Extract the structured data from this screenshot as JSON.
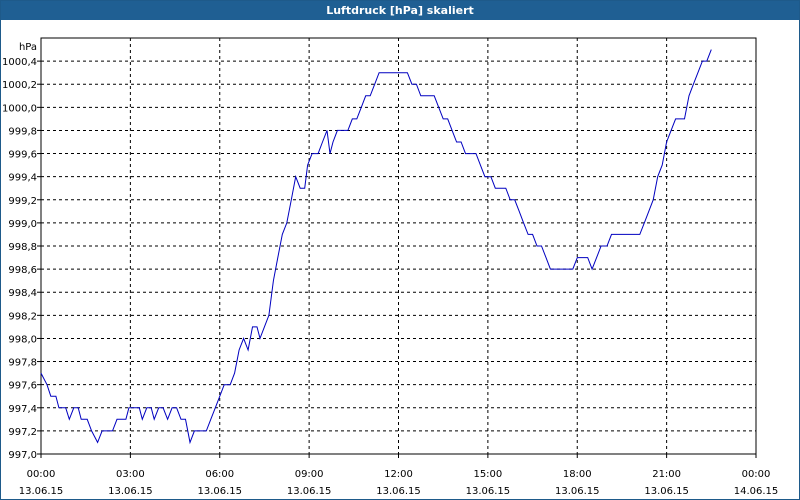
{
  "title": "Luftdruck [hPa] skaliert",
  "chart_data": {
    "type": "line",
    "title": "Luftdruck [hPa] skaliert",
    "ylabel": "hPa",
    "xlabel": "",
    "ylim": [
      997.0,
      1000.6
    ],
    "y_ticks": [
      "997,0",
      "997,2",
      "997,4",
      "997,6",
      "997,8",
      "998,0",
      "998,2",
      "998,4",
      "998,6",
      "998,8",
      "999,0",
      "999,2",
      "999,4",
      "999,6",
      "999,8",
      "1000,0",
      "1000,2",
      "1000,4"
    ],
    "x_ticks": [
      {
        "time": "00:00",
        "date": "13.06.15"
      },
      {
        "time": "03:00",
        "date": "13.06.15"
      },
      {
        "time": "06:00",
        "date": "13.06.15"
      },
      {
        "time": "09:00",
        "date": "13.06.15"
      },
      {
        "time": "12:00",
        "date": "13.06.15"
      },
      {
        "time": "15:00",
        "date": "13.06.15"
      },
      {
        "time": "18:00",
        "date": "13.06.15"
      },
      {
        "time": "21:00",
        "date": "13.06.15"
      },
      {
        "time": "00:00",
        "date": "14.06.15"
      }
    ],
    "x_unit": "hours from 13.06.15 00:00",
    "xlim": [
      0,
      24
    ],
    "grid": true,
    "line_color": "#0000c0",
    "series": [
      {
        "name": "",
        "points": [
          [
            0.0,
            997.7
          ],
          [
            0.2,
            997.6
          ],
          [
            0.33,
            997.5
          ],
          [
            0.5,
            997.5
          ],
          [
            0.6,
            997.4
          ],
          [
            0.83,
            997.4
          ],
          [
            0.95,
            997.3
          ],
          [
            1.1,
            997.4
          ],
          [
            1.25,
            997.4
          ],
          [
            1.35,
            997.3
          ],
          [
            1.55,
            997.3
          ],
          [
            1.7,
            997.2
          ],
          [
            1.9,
            997.1
          ],
          [
            2.05,
            997.2
          ],
          [
            2.4,
            997.2
          ],
          [
            2.55,
            997.3
          ],
          [
            2.85,
            997.3
          ],
          [
            2.95,
            997.4
          ],
          [
            3.3,
            997.4
          ],
          [
            3.4,
            997.3
          ],
          [
            3.55,
            997.4
          ],
          [
            3.7,
            997.4
          ],
          [
            3.8,
            997.3
          ],
          [
            3.95,
            997.4
          ],
          [
            4.1,
            997.4
          ],
          [
            4.25,
            997.3
          ],
          [
            4.4,
            997.4
          ],
          [
            4.55,
            997.4
          ],
          [
            4.7,
            997.3
          ],
          [
            4.85,
            997.3
          ],
          [
            5.0,
            997.1
          ],
          [
            5.15,
            997.2
          ],
          [
            5.55,
            997.2
          ],
          [
            5.7,
            997.3
          ],
          [
            5.85,
            997.4
          ],
          [
            6.0,
            997.5
          ],
          [
            6.15,
            997.6
          ],
          [
            6.35,
            997.6
          ],
          [
            6.5,
            997.7
          ],
          [
            6.65,
            997.9
          ],
          [
            6.8,
            998.0
          ],
          [
            6.95,
            997.9
          ],
          [
            7.1,
            998.1
          ],
          [
            7.25,
            998.1
          ],
          [
            7.35,
            998.0
          ],
          [
            7.5,
            998.1
          ],
          [
            7.65,
            998.2
          ],
          [
            7.8,
            998.5
          ],
          [
            7.95,
            998.7
          ],
          [
            8.1,
            998.9
          ],
          [
            8.25,
            999.0
          ],
          [
            8.4,
            999.2
          ],
          [
            8.55,
            999.4
          ],
          [
            8.7,
            999.3
          ],
          [
            8.85,
            999.3
          ],
          [
            8.95,
            999.5
          ],
          [
            9.1,
            999.6
          ],
          [
            9.3,
            999.6
          ],
          [
            9.45,
            999.7
          ],
          [
            9.6,
            999.8
          ],
          [
            9.7,
            999.6
          ],
          [
            9.8,
            999.7
          ],
          [
            9.95,
            999.8
          ],
          [
            10.3,
            999.8
          ],
          [
            10.45,
            999.9
          ],
          [
            10.6,
            999.9
          ],
          [
            10.75,
            1000.0
          ],
          [
            10.9,
            1000.1
          ],
          [
            11.05,
            1000.1
          ],
          [
            11.2,
            1000.2
          ],
          [
            11.35,
            1000.3
          ],
          [
            12.3,
            1000.3
          ],
          [
            12.45,
            1000.2
          ],
          [
            12.6,
            1000.2
          ],
          [
            12.75,
            1000.1
          ],
          [
            13.2,
            1000.1
          ],
          [
            13.35,
            1000.0
          ],
          [
            13.5,
            999.9
          ],
          [
            13.65,
            999.9
          ],
          [
            13.8,
            999.8
          ],
          [
            13.95,
            999.7
          ],
          [
            14.1,
            999.7
          ],
          [
            14.25,
            999.6
          ],
          [
            14.6,
            999.6
          ],
          [
            14.75,
            999.5
          ],
          [
            14.9,
            999.4
          ],
          [
            15.1,
            999.4
          ],
          [
            15.25,
            999.3
          ],
          [
            15.6,
            999.3
          ],
          [
            15.75,
            999.2
          ],
          [
            15.9,
            999.2
          ],
          [
            16.05,
            999.1
          ],
          [
            16.2,
            999.0
          ],
          [
            16.35,
            998.9
          ],
          [
            16.5,
            998.9
          ],
          [
            16.65,
            998.8
          ],
          [
            16.8,
            998.8
          ],
          [
            16.95,
            998.7
          ],
          [
            17.1,
            998.6
          ],
          [
            17.85,
            998.6
          ],
          [
            18.0,
            998.7
          ],
          [
            18.35,
            998.7
          ],
          [
            18.5,
            998.6
          ],
          [
            18.65,
            998.7
          ],
          [
            18.8,
            998.8
          ],
          [
            19.0,
            998.8
          ],
          [
            19.15,
            998.9
          ],
          [
            20.1,
            998.9
          ],
          [
            20.25,
            999.0
          ],
          [
            20.4,
            999.1
          ],
          [
            20.55,
            999.2
          ],
          [
            20.7,
            999.4
          ],
          [
            20.85,
            999.5
          ],
          [
            21.0,
            999.7
          ],
          [
            21.15,
            999.8
          ],
          [
            21.3,
            999.9
          ],
          [
            21.6,
            999.9
          ],
          [
            21.75,
            1000.1
          ],
          [
            21.9,
            1000.2
          ],
          [
            22.05,
            1000.3
          ],
          [
            22.2,
            1000.4
          ],
          [
            22.35,
            1000.4
          ],
          [
            22.5,
            1000.5
          ]
        ]
      }
    ]
  }
}
